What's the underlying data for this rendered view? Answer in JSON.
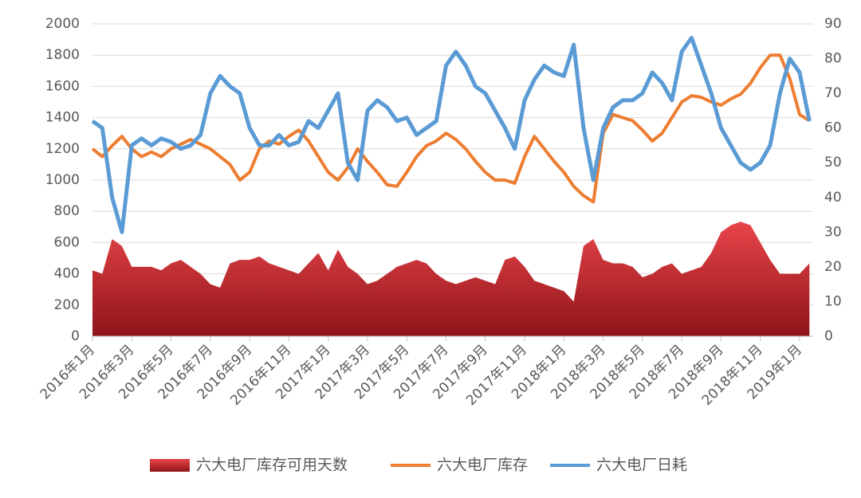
{
  "chart_data": {
    "type": "line",
    "categories": [
      "2016年1月",
      null,
      null,
      null,
      "2016年3月",
      null,
      null,
      null,
      "2016年5月",
      null,
      null,
      null,
      "2016年7月",
      null,
      null,
      null,
      "2016年9月",
      null,
      null,
      null,
      "2016年11月",
      null,
      null,
      null,
      "2017年1月",
      null,
      null,
      null,
      "2017年3月",
      null,
      null,
      null,
      "2017年5月",
      null,
      null,
      null,
      "2017年7月",
      null,
      null,
      null,
      "2017年9月",
      null,
      null,
      null,
      "2017年11月",
      null,
      null,
      null,
      "2018年1月",
      null,
      null,
      null,
      "2018年3月",
      null,
      null,
      null,
      "2018年5月",
      null,
      null,
      null,
      "2018年7月",
      null,
      null,
      null,
      "2018年9月",
      null,
      null,
      null,
      "2018年11月",
      null,
      null,
      null,
      "2019年1月",
      null
    ],
    "series": [
      {
        "name": "六大电厂库存可用天数",
        "type": "area",
        "axis": "y2",
        "color": "#c0272d",
        "values": [
          19,
          18,
          28,
          26,
          20,
          20,
          20,
          19,
          21,
          22,
          20,
          18,
          15,
          14,
          21,
          22,
          22,
          23,
          21,
          20,
          19,
          18,
          21,
          24,
          19,
          25,
          20,
          18,
          15,
          16,
          18,
          20,
          21,
          22,
          21,
          18,
          16,
          15,
          16,
          17,
          16,
          15,
          22,
          23,
          20,
          16,
          15,
          14,
          13,
          10,
          26,
          28,
          22,
          21,
          21,
          20,
          17,
          18,
          20,
          21,
          18,
          19,
          20,
          24,
          30,
          32,
          33,
          32,
          27,
          22,
          18,
          18,
          18,
          21
        ]
      },
      {
        "name": "六大电厂库存",
        "type": "line",
        "color": "#ed7d31",
        "values": [
          1200,
          1150,
          1220,
          1280,
          1200,
          1150,
          1180,
          1150,
          1200,
          1230,
          1260,
          1230,
          1200,
          1150,
          1100,
          1000,
          1050,
          1200,
          1250,
          1230,
          1280,
          1320,
          1250,
          1150,
          1050,
          1000,
          1080,
          1200,
          1120,
          1050,
          970,
          960,
          1050,
          1150,
          1220,
          1250,
          1300,
          1260,
          1200,
          1120,
          1050,
          1000,
          1000,
          980,
          1150,
          1280,
          1200,
          1120,
          1050,
          960,
          900,
          860,
          1300,
          1420,
          1400,
          1380,
          1320,
          1250,
          1300,
          1400,
          1500,
          1540,
          1530,
          1500,
          1480,
          1520,
          1550,
          1620,
          1720,
          1800,
          1800,
          1650,
          1420,
          1380
        ]
      },
      {
        "name": "六大电厂日耗",
        "type": "line",
        "axis": "y2",
        "color": "#5b9bd5",
        "values": [
          62,
          60,
          40,
          30,
          55,
          57,
          55,
          57,
          56,
          54,
          55,
          58,
          70,
          75,
          72,
          70,
          60,
          55,
          55,
          58,
          55,
          56,
          62,
          60,
          65,
          70,
          50,
          45,
          65,
          68,
          66,
          62,
          63,
          58,
          60,
          62,
          78,
          82,
          78,
          72,
          70,
          65,
          60,
          54,
          68,
          74,
          78,
          76,
          75,
          84,
          60,
          45,
          60,
          66,
          68,
          68,
          70,
          76,
          73,
          68,
          82,
          86,
          78,
          70,
          60,
          55,
          50,
          48,
          50,
          55,
          70,
          80,
          76,
          62
        ]
      }
    ],
    "ylim": [
      0,
      2000
    ],
    "yticks": [
      0,
      200,
      400,
      600,
      800,
      1000,
      1200,
      1400,
      1600,
      1800,
      2000
    ],
    "y2lim": [
      0,
      90
    ],
    "y2ticks": [
      0,
      10,
      20,
      30,
      40,
      50,
      60,
      70,
      80,
      90
    ],
    "grid": true,
    "legend": "bottom"
  }
}
